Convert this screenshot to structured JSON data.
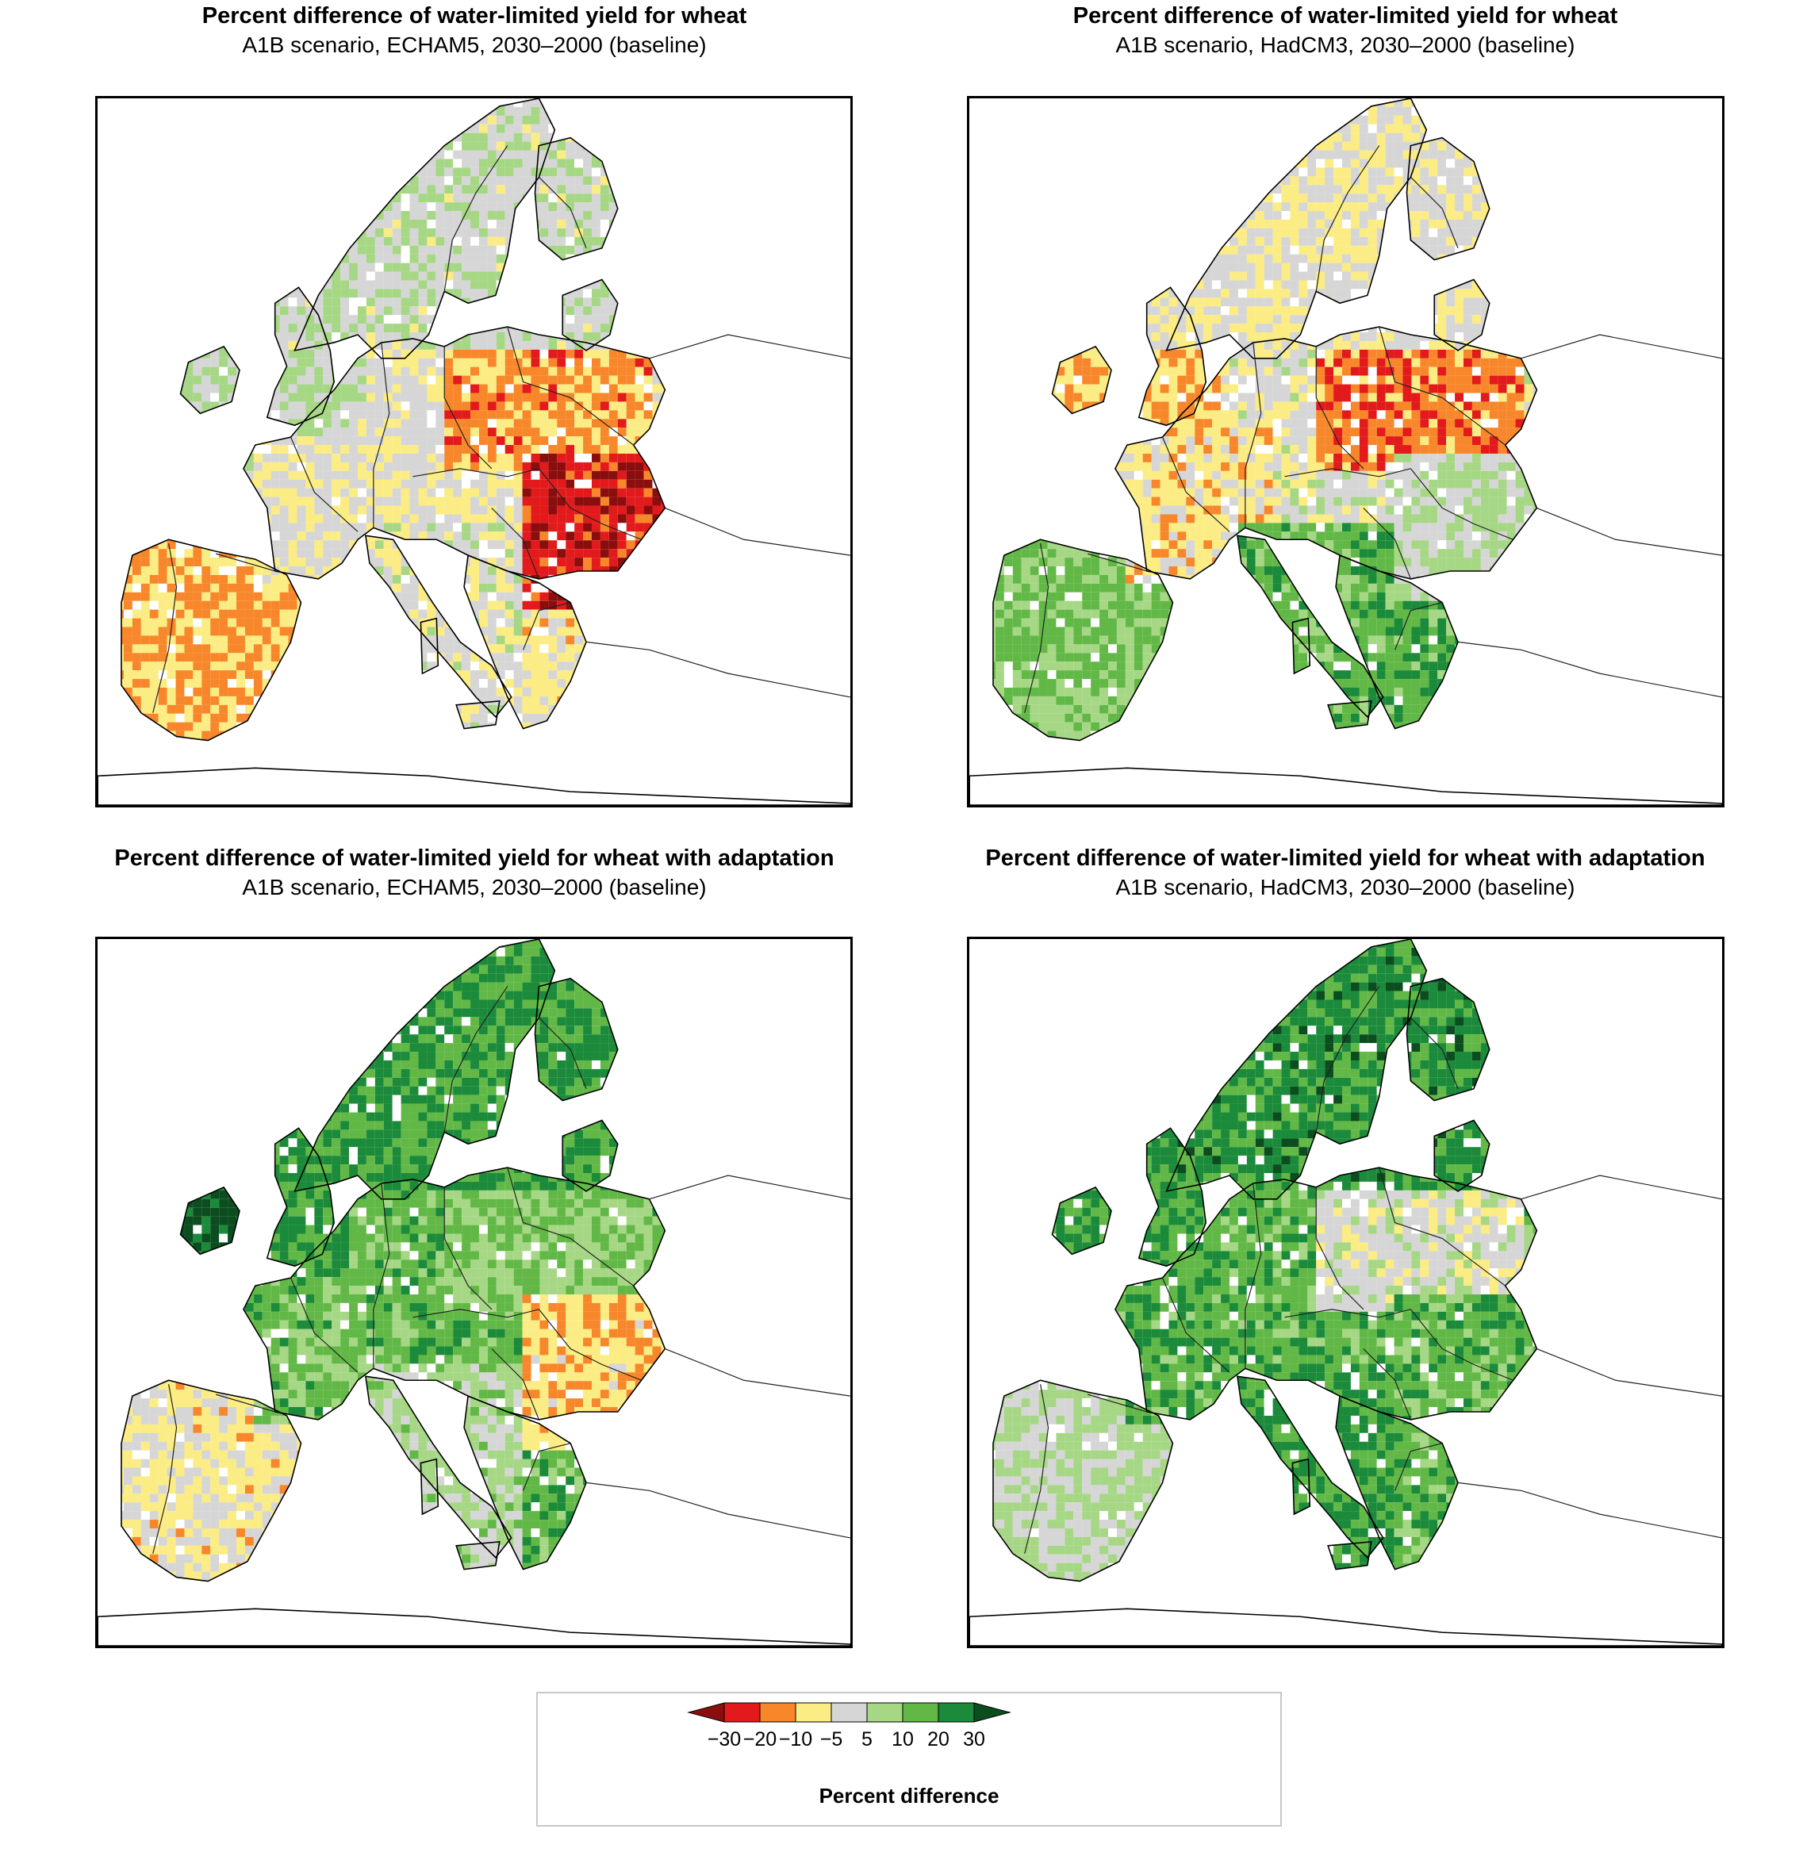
{
  "panels": [
    {
      "title": "Percent difference of water-limited yield for wheat",
      "subtitle": "A1B scenario, ECHAM5, 2030–2000 (baseline)",
      "pattern": "echam5"
    },
    {
      "title": "Percent difference of water-limited yield for wheat",
      "subtitle": "A1B scenario, HadCM3, 2030–2000 (baseline)",
      "pattern": "hadcm3"
    },
    {
      "title": "Percent difference of water-limited yield for wheat with adaptation",
      "subtitle": "A1B scenario, ECHAM5, 2030–2000 (baseline)",
      "pattern": "echam5_adapt"
    },
    {
      "title": "Percent difference of water-limited yield for wheat with adaptation",
      "subtitle": "A1B scenario, HadCM3, 2030–2000 (baseline)",
      "pattern": "hadcm3_adapt"
    }
  ],
  "legend": {
    "title": "Percent difference",
    "ticks": [
      "−30",
      "−20",
      "−10",
      "−5",
      "5",
      "10",
      "20",
      "30"
    ],
    "classes": [
      {
        "range": "< -30",
        "color": "#8b0e0e"
      },
      {
        "range": "-30 to -20",
        "color": "#e31a1c"
      },
      {
        "range": "-20 to -10",
        "color": "#f7872a"
      },
      {
        "range": "-10 to -5",
        "color": "#fbec84"
      },
      {
        "range": "-5 to 5",
        "color": "#d6d6d6"
      },
      {
        "range": "5 to 10",
        "color": "#a6d785"
      },
      {
        "range": "10 to 20",
        "color": "#62b846"
      },
      {
        "range": "20 to 30",
        "color": "#1b8a3a"
      },
      {
        "range": "> 30",
        "color": "#0b4d1f"
      }
    ]
  }
}
